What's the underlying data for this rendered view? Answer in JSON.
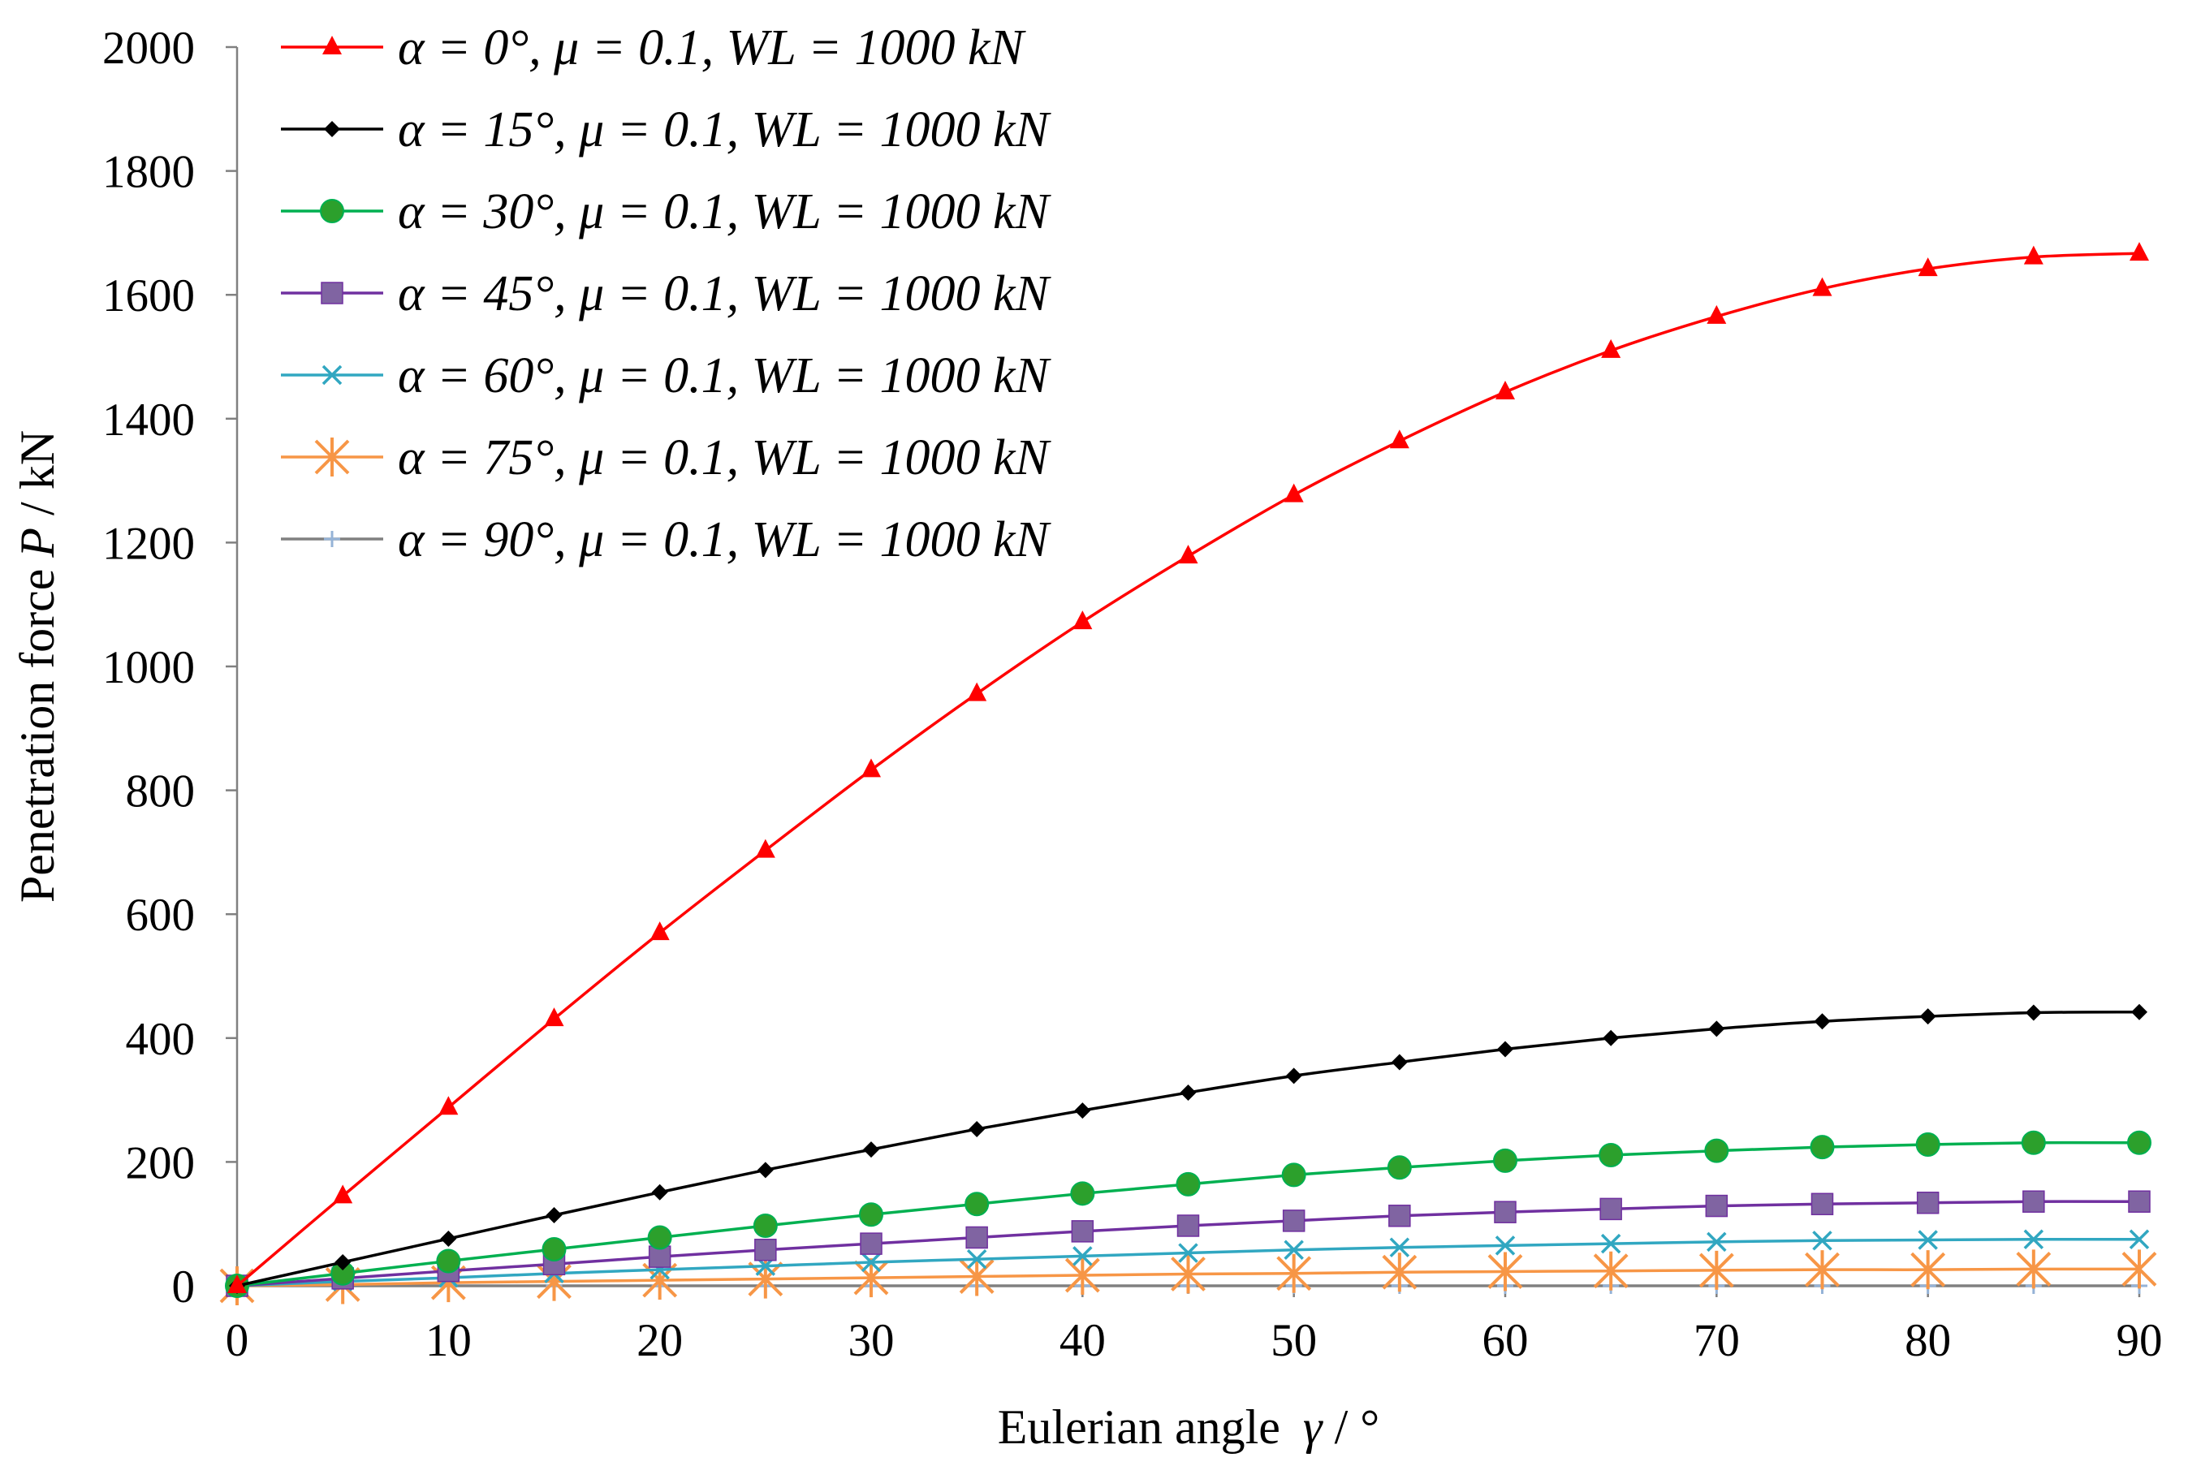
{
  "chart_data": {
    "type": "line",
    "title": "",
    "xlabel": "Eulerian angle",
    "xlabel_symbol": "γ",
    "xlabel_unit": " / °",
    "ylabel": "Penetration force",
    "ylabel_symbol": "P",
    "ylabel_unit": " / kN",
    "xlim": [
      0,
      90
    ],
    "ylim": [
      0,
      2000
    ],
    "xticks": [
      "0",
      "10",
      "20",
      "30",
      "40",
      "50",
      "60",
      "70",
      "80",
      "90"
    ],
    "yticks": [
      "0",
      "200",
      "400",
      "600",
      "800",
      "1000",
      "1200",
      "1400",
      "1600",
      "1800",
      "2000"
    ],
    "grid": false,
    "legend_position": "top-left",
    "x": [
      0,
      5,
      10,
      15,
      20,
      25,
      30,
      35,
      40,
      45,
      50,
      55,
      60,
      65,
      70,
      75,
      80,
      85,
      90
    ],
    "series": [
      {
        "name": "α = 0°, μ = 0.1, WL = 1000 kN",
        "color": "#ff0000",
        "marker": "triangle",
        "values": [
          0,
          145,
          288,
          431,
          570,
          703,
          833,
          956,
          1072,
          1178,
          1277,
          1364,
          1443,
          1510,
          1565,
          1610,
          1642,
          1661,
          1667
        ]
      },
      {
        "name": "α = 15°, μ = 0.1, WL = 1000 kN",
        "color": "#000000",
        "marker": "diamond",
        "values": [
          0,
          38,
          76,
          114,
          151,
          187,
          220,
          253,
          283,
          312,
          339,
          361,
          382,
          400,
          415,
          427,
          435,
          441,
          442
        ]
      },
      {
        "name": "α = 30°, μ = 0.1, WL = 1000 kN",
        "color": "#00b050",
        "marker_fill": "#2ca02c",
        "marker": "circle",
        "values": [
          0,
          20,
          40,
          59,
          78,
          97,
          115,
          132,
          149,
          164,
          179,
          191,
          202,
          211,
          218,
          224,
          228,
          231,
          231
        ]
      },
      {
        "name": "α = 45°, μ = 0.1, WL = 1000 kN",
        "color": "#7030a0",
        "marker_fill": "#8064a2",
        "marker": "square",
        "values": [
          0,
          12,
          24,
          35,
          47,
          58,
          68,
          78,
          88,
          97,
          105,
          113,
          119,
          124,
          129,
          132,
          134,
          136,
          136
        ]
      },
      {
        "name": "α = 60°, μ = 0.1, WL = 1000 kN",
        "color": "#31a7c1",
        "marker": "x",
        "values": [
          0,
          7,
          13,
          20,
          26,
          32,
          38,
          43,
          48,
          53,
          58,
          62,
          65,
          68,
          71,
          73,
          74,
          75,
          75
        ]
      },
      {
        "name": "α = 75°, μ = 0.1, WL = 1000 kN",
        "color": "#f79646",
        "marker": "star",
        "values": [
          0,
          2,
          5,
          7,
          9,
          11,
          13,
          15,
          17,
          19,
          20,
          22,
          23,
          24,
          25,
          26,
          26,
          27,
          27
        ]
      },
      {
        "name": "α = 90°, μ = 0.1, WL = 1000 kN",
        "color": "#95b3d7",
        "line_color": "#808080",
        "marker": "plus",
        "values": [
          0,
          0,
          0,
          0,
          0,
          0,
          0,
          0,
          0,
          0,
          0,
          0,
          0,
          0,
          0,
          0,
          0,
          0,
          0
        ]
      }
    ]
  }
}
